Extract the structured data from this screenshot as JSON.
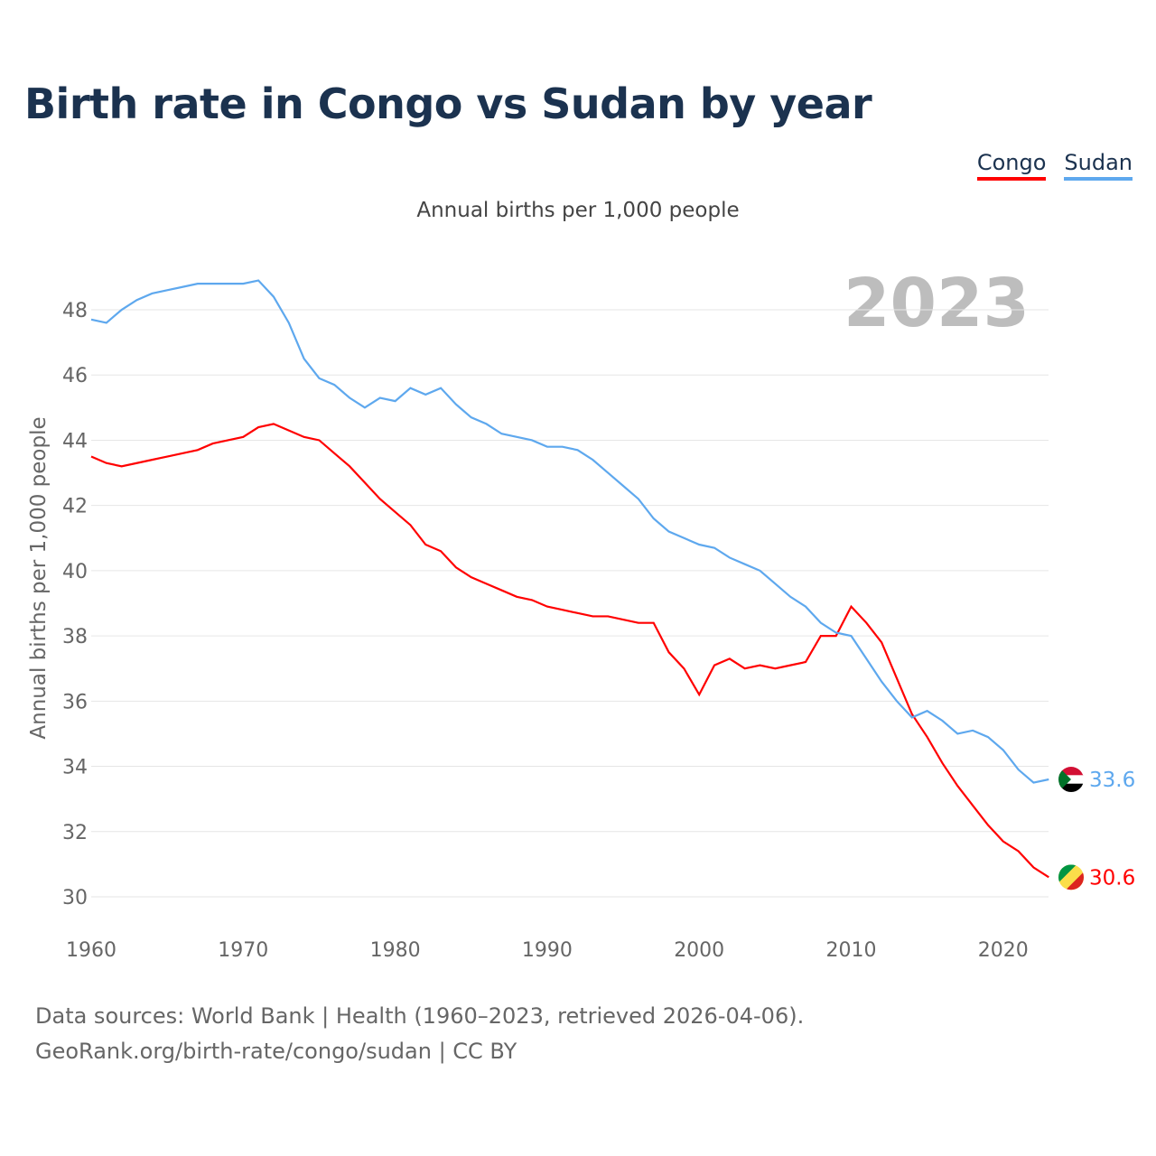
{
  "title": "Birth rate in Congo vs Sudan by year",
  "legend": [
    {
      "name": "Congo",
      "color": "#ff0000"
    },
    {
      "name": "Sudan",
      "color": "#5ea8ee"
    }
  ],
  "source_line1": "Data sources: World Bank | Health (1960–2023, retrieved 2026-04-06).",
  "source_line2": "GeoRank.org/birth-rate/congo/sudan | CC BY",
  "chart_data": {
    "type": "line",
    "subtitle": "Annual births per 1,000 people",
    "ylabel": "Annual births per 1,000 people",
    "year_label": "2023",
    "xlim": [
      1960,
      2023
    ],
    "ylim": [
      30,
      49
    ],
    "xticks": [
      "1960",
      "1970",
      "1980",
      "1990",
      "2000",
      "2010",
      "2020"
    ],
    "yticks": [
      "30",
      "32",
      "34",
      "36",
      "38",
      "40",
      "42",
      "44",
      "46",
      "48"
    ],
    "x_start": 1960,
    "series": [
      {
        "name": "Congo",
        "color": "#ff0000",
        "end_label": "30.6",
        "values": [
          43.5,
          43.3,
          43.2,
          43.3,
          43.4,
          43.5,
          43.6,
          43.7,
          43.9,
          44.0,
          44.1,
          44.4,
          44.5,
          44.3,
          44.1,
          44.0,
          43.6,
          43.2,
          42.7,
          42.2,
          41.8,
          41.4,
          40.8,
          40.6,
          40.1,
          39.8,
          39.6,
          39.4,
          39.2,
          39.1,
          38.9,
          38.8,
          38.7,
          38.6,
          38.6,
          38.5,
          38.4,
          38.4,
          37.5,
          37.0,
          36.2,
          37.1,
          37.3,
          37.0,
          37.1,
          37.0,
          37.1,
          37.2,
          38.0,
          38.0,
          38.9,
          38.4,
          37.8,
          36.7,
          35.6,
          34.9,
          34.1,
          33.4,
          32.8,
          32.2,
          31.7,
          31.4,
          30.9,
          30.6
        ]
      },
      {
        "name": "Sudan",
        "color": "#5ea8ee",
        "end_label": "33.6",
        "values": [
          47.7,
          47.6,
          48.0,
          48.3,
          48.5,
          48.6,
          48.7,
          48.8,
          48.8,
          48.8,
          48.8,
          48.9,
          48.4,
          47.6,
          46.5,
          45.9,
          45.7,
          45.3,
          45.0,
          45.3,
          45.2,
          45.6,
          45.4,
          45.6,
          45.1,
          44.7,
          44.5,
          44.2,
          44.1,
          44.0,
          43.8,
          43.8,
          43.7,
          43.4,
          43.0,
          42.6,
          42.2,
          41.6,
          41.2,
          41.0,
          40.8,
          40.7,
          40.4,
          40.2,
          40.0,
          39.6,
          39.2,
          38.9,
          38.4,
          38.1,
          38.0,
          37.3,
          36.6,
          36.0,
          35.5,
          35.7,
          35.4,
          35.0,
          35.1,
          34.9,
          34.5,
          33.9,
          33.5,
          33.6
        ]
      }
    ]
  }
}
